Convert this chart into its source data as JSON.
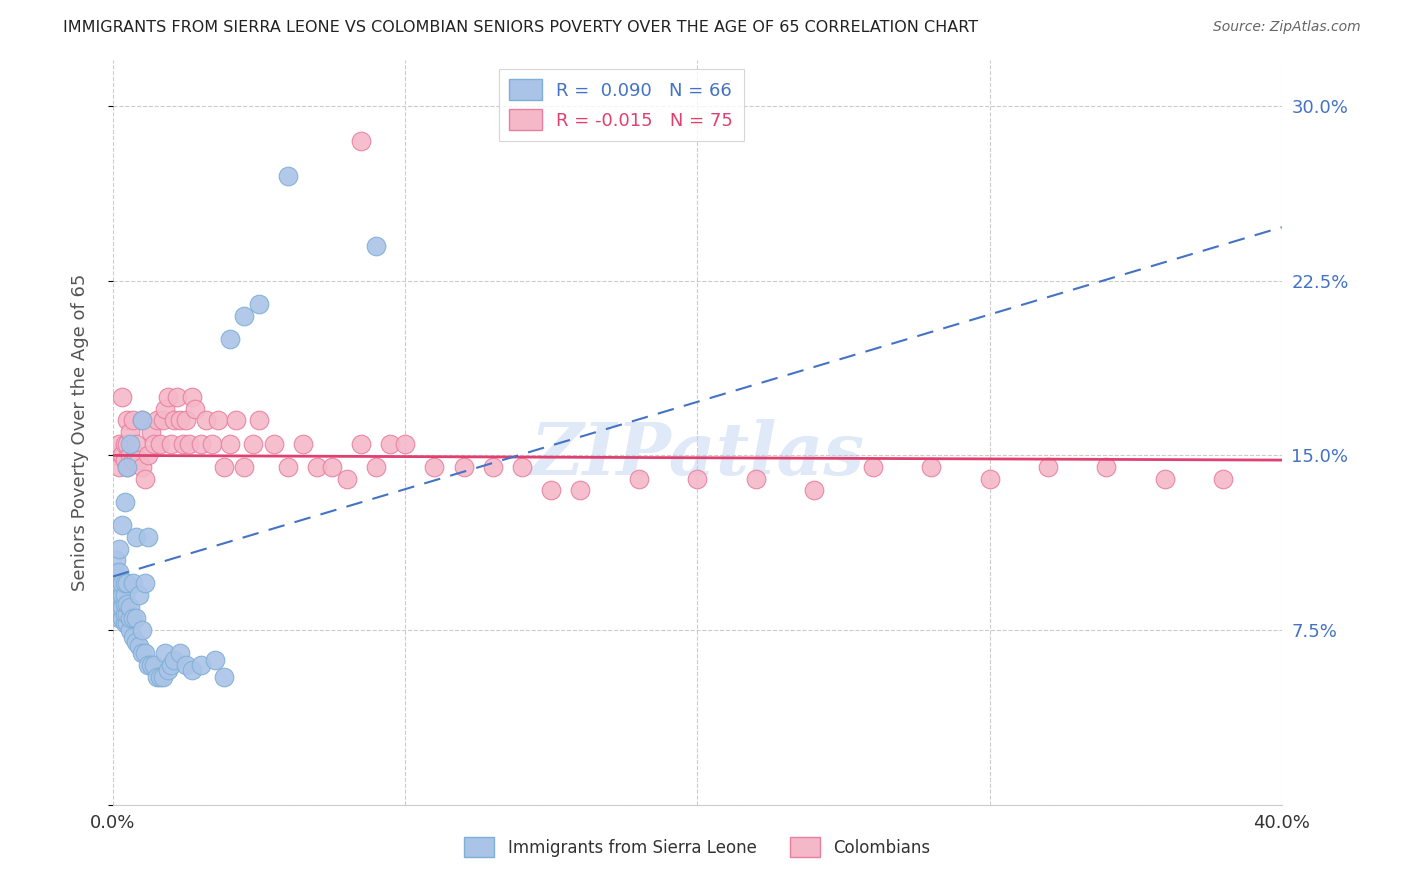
{
  "title": "IMMIGRANTS FROM SIERRA LEONE VS COLOMBIAN SENIORS POVERTY OVER THE AGE OF 65 CORRELATION CHART",
  "source": "Source: ZipAtlas.com",
  "ylabel": "Seniors Poverty Over the Age of 65",
  "xlim": [
    0.0,
    0.4
  ],
  "ylim": [
    0.0,
    0.32
  ],
  "grid_color": "#cccccc",
  "watermark": "ZIPatlas",
  "sierra_leone_color": "#aac4e8",
  "sierra_leone_edge": "#7fafd4",
  "colombian_color": "#f5b8c8",
  "colombian_edge": "#e87fa0",
  "sierra_leone_R": "0.090",
  "sierra_leone_N": "66",
  "colombian_R": "-0.015",
  "colombian_N": "75",
  "sierra_leone_line_color": "#4472c4",
  "colombian_line_color": "#e04070",
  "sierra_leone_x": [
    0.001,
    0.001,
    0.001,
    0.001,
    0.001,
    0.002,
    0.002,
    0.002,
    0.002,
    0.002,
    0.002,
    0.003,
    0.003,
    0.003,
    0.003,
    0.003,
    0.004,
    0.004,
    0.004,
    0.004,
    0.004,
    0.004,
    0.005,
    0.005,
    0.005,
    0.005,
    0.005,
    0.006,
    0.006,
    0.006,
    0.006,
    0.007,
    0.007,
    0.007,
    0.008,
    0.008,
    0.008,
    0.009,
    0.009,
    0.01,
    0.01,
    0.01,
    0.011,
    0.011,
    0.012,
    0.012,
    0.013,
    0.014,
    0.015,
    0.016,
    0.017,
    0.018,
    0.019,
    0.02,
    0.021,
    0.023,
    0.025,
    0.027,
    0.03,
    0.035,
    0.038,
    0.04,
    0.045,
    0.05,
    0.06,
    0.09
  ],
  "sierra_leone_y": [
    0.085,
    0.09,
    0.095,
    0.1,
    0.105,
    0.08,
    0.085,
    0.09,
    0.095,
    0.1,
    0.11,
    0.08,
    0.085,
    0.09,
    0.095,
    0.12,
    0.078,
    0.082,
    0.086,
    0.09,
    0.095,
    0.13,
    0.078,
    0.082,
    0.086,
    0.095,
    0.145,
    0.075,
    0.08,
    0.085,
    0.155,
    0.072,
    0.08,
    0.095,
    0.07,
    0.08,
    0.115,
    0.068,
    0.09,
    0.065,
    0.075,
    0.165,
    0.065,
    0.095,
    0.06,
    0.115,
    0.06,
    0.06,
    0.055,
    0.055,
    0.055,
    0.065,
    0.058,
    0.06,
    0.062,
    0.065,
    0.06,
    0.058,
    0.06,
    0.062,
    0.055,
    0.2,
    0.21,
    0.215,
    0.27,
    0.24
  ],
  "colombian_x": [
    0.001,
    0.002,
    0.002,
    0.003,
    0.003,
    0.004,
    0.004,
    0.005,
    0.005,
    0.005,
    0.006,
    0.006,
    0.007,
    0.007,
    0.008,
    0.008,
    0.009,
    0.01,
    0.01,
    0.011,
    0.012,
    0.013,
    0.014,
    0.015,
    0.016,
    0.017,
    0.018,
    0.019,
    0.02,
    0.021,
    0.022,
    0.023,
    0.024,
    0.025,
    0.026,
    0.027,
    0.028,
    0.03,
    0.032,
    0.034,
    0.036,
    0.038,
    0.04,
    0.042,
    0.045,
    0.048,
    0.05,
    0.055,
    0.06,
    0.065,
    0.07,
    0.075,
    0.08,
    0.085,
    0.09,
    0.095,
    0.1,
    0.11,
    0.12,
    0.13,
    0.14,
    0.15,
    0.16,
    0.18,
    0.2,
    0.22,
    0.24,
    0.26,
    0.28,
    0.3,
    0.32,
    0.34,
    0.36,
    0.38,
    0.085
  ],
  "colombian_y": [
    0.15,
    0.145,
    0.155,
    0.15,
    0.175,
    0.148,
    0.155,
    0.145,
    0.155,
    0.165,
    0.15,
    0.16,
    0.148,
    0.165,
    0.15,
    0.155,
    0.148,
    0.145,
    0.165,
    0.14,
    0.15,
    0.16,
    0.155,
    0.165,
    0.155,
    0.165,
    0.17,
    0.175,
    0.155,
    0.165,
    0.175,
    0.165,
    0.155,
    0.165,
    0.155,
    0.175,
    0.17,
    0.155,
    0.165,
    0.155,
    0.165,
    0.145,
    0.155,
    0.165,
    0.145,
    0.155,
    0.165,
    0.155,
    0.145,
    0.155,
    0.145,
    0.145,
    0.14,
    0.155,
    0.145,
    0.155,
    0.155,
    0.145,
    0.145,
    0.145,
    0.145,
    0.135,
    0.135,
    0.14,
    0.14,
    0.14,
    0.135,
    0.145,
    0.145,
    0.14,
    0.145,
    0.145,
    0.14,
    0.14,
    0.285
  ],
  "background_color": "#ffffff",
  "title_color": "#222222",
  "source_color": "#666666",
  "axis_label_color": "#555555",
  "tick_color_blue": "#4472c4",
  "tick_color_dark": "#333333"
}
